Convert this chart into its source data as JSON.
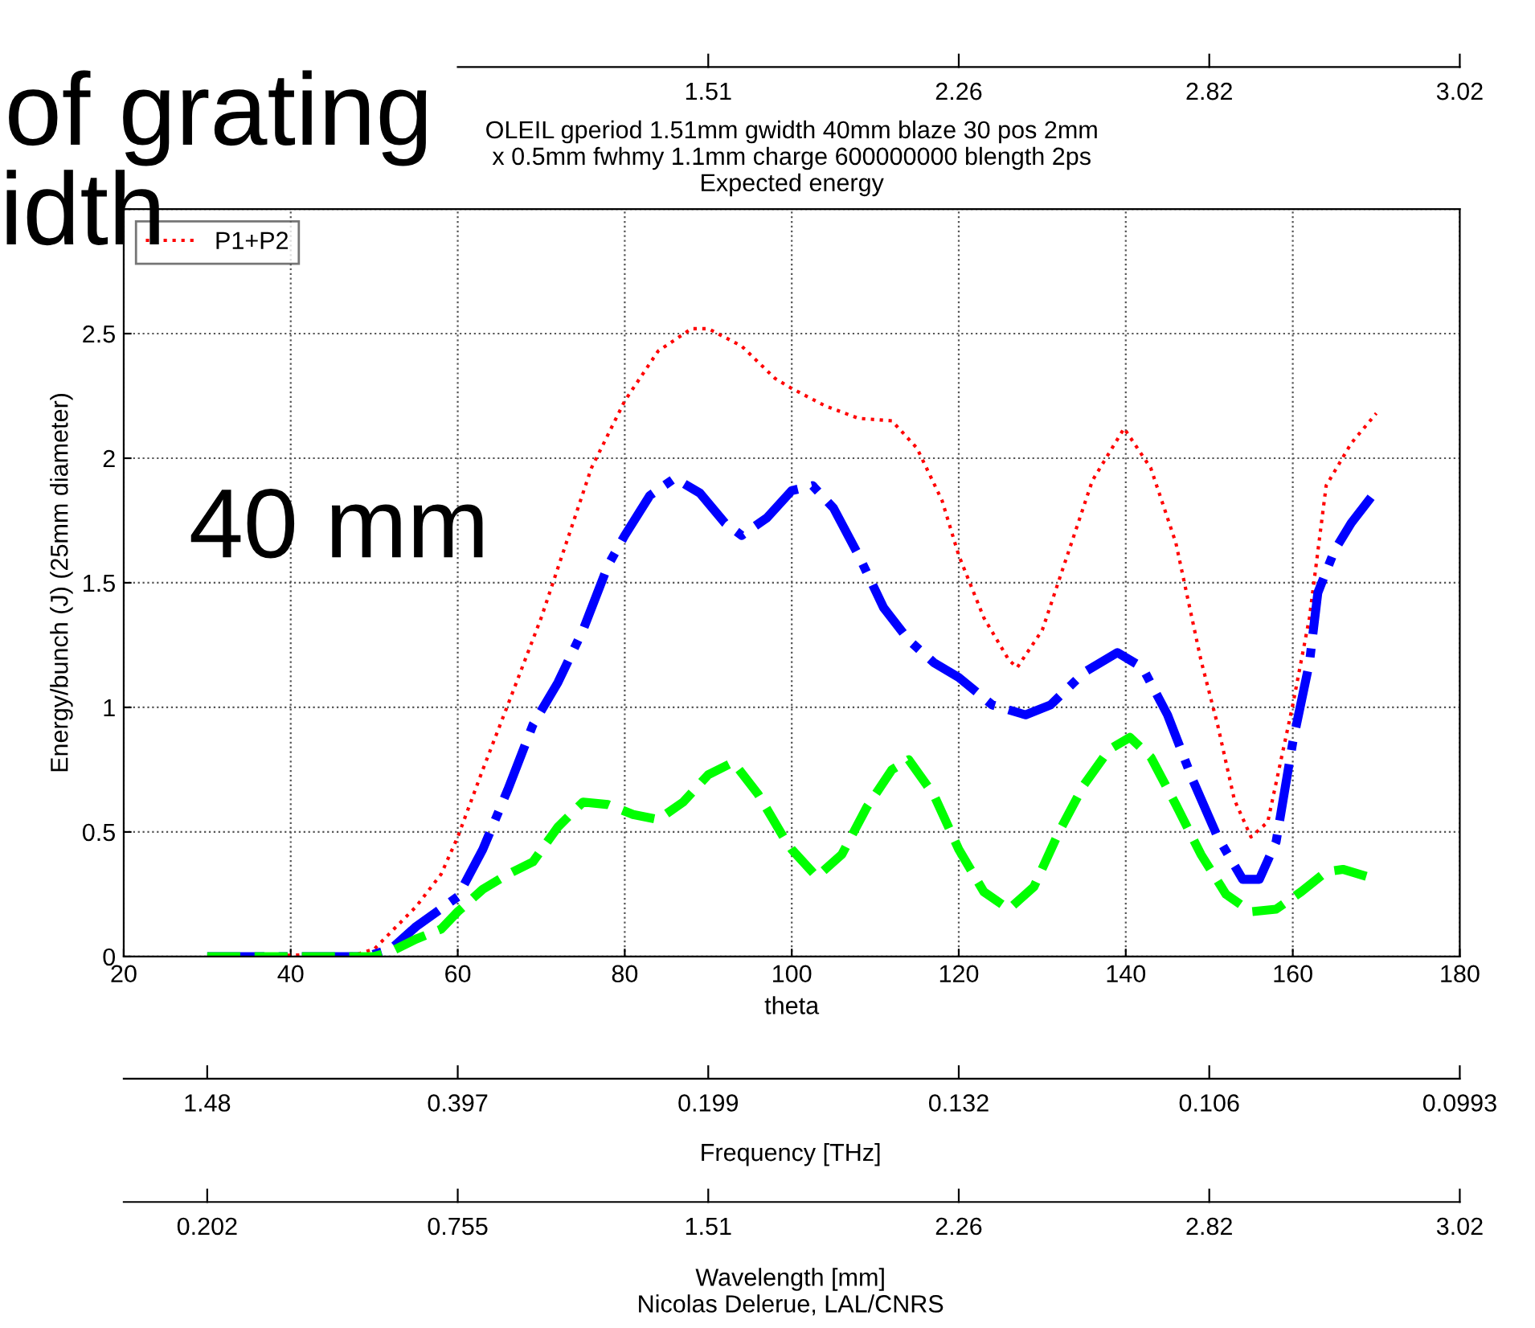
{
  "chart_data": {
    "type": "line",
    "title": "OLEIL gperiod 1.51mm gwidth 40mm blaze 30 pos 2mm\nx 0.5mm fwhmy 1.1mm charge 600000000 blength 2ps\nExpected energy",
    "xlabel": "theta",
    "ylabel": "Energy/bunch (J) (25mm diameter)",
    "xlim": [
      20,
      180
    ],
    "xticks": [
      20,
      40,
      60,
      80,
      100,
      120,
      140,
      160,
      180
    ],
    "ylim": [
      0,
      3
    ],
    "yticks": [
      0,
      0.5,
      1,
      1.5,
      2,
      2.5,
      {
        "value": 3,
        "label": null
      }
    ],
    "grid": true,
    "legend": "top left",
    "annotations": [
      "Nicolas Delerue, LAL/CNRS",
      "40 mm",
      "of grating",
      "idth",
      "Frequency [THz]",
      "Wavelength [mm]",
      "1.51",
      "2.26",
      "2.82",
      "3.02",
      "1.48",
      "0.397",
      "0.199",
      "0.132",
      "0.106",
      "0.0993",
      "0.202",
      "0.755",
      "1.51",
      "2.26",
      "2.82",
      "3.02"
    ],
    "series": [
      {
        "name": "P1+P2",
        "color": "#ff0000",
        "line_style": "dotted",
        "x": [
          30,
          48,
          50,
          55,
          58,
          60,
          63,
          66,
          70,
          73,
          76,
          80,
          84,
          88,
          90,
          94,
          98,
          100,
          104,
          108,
          112,
          115,
          118,
          120,
          123,
          126,
          127,
          130,
          133,
          136,
          139.8,
          143,
          146,
          149,
          151,
          153,
          155,
          157,
          160,
          162,
          164,
          167,
          170
        ],
        "values": [
          0,
          0.01,
          0.03,
          0.2,
          0.33,
          0.48,
          0.75,
          1.01,
          1.36,
          1.66,
          1.96,
          2.23,
          2.43,
          2.52,
          2.52,
          2.45,
          2.32,
          2.28,
          2.21,
          2.16,
          2.15,
          2.04,
          1.83,
          1.61,
          1.36,
          1.19,
          1.16,
          1.31,
          1.61,
          1.91,
          2.12,
          1.96,
          1.66,
          1.19,
          0.93,
          0.63,
          0.48,
          0.54,
          1.01,
          1.36,
          1.89,
          2.06,
          2.18
        ]
      },
      {
        "color": "#0000ff",
        "line_style": "dashdot",
        "x": [
          30,
          49,
          52,
          55,
          60,
          63,
          66,
          69,
          72,
          75,
          78,
          80,
          83,
          86,
          89,
          92,
          94,
          97,
          100,
          102.5,
          105,
          108,
          111,
          114,
          117,
          120,
          124,
          128,
          131,
          135,
          139,
          142,
          145,
          148,
          151,
          154,
          156,
          158,
          160,
          162,
          163,
          165,
          167,
          170
        ],
        "values": [
          0,
          0,
          0.03,
          0.12,
          0.24,
          0.43,
          0.67,
          0.93,
          1.1,
          1.31,
          1.57,
          1.69,
          1.85,
          1.92,
          1.86,
          1.74,
          1.69,
          1.76,
          1.87,
          1.89,
          1.8,
          1.61,
          1.4,
          1.27,
          1.18,
          1.12,
          1.01,
          0.97,
          1.01,
          1.14,
          1.22,
          1.16,
          0.97,
          0.71,
          0.48,
          0.31,
          0.31,
          0.46,
          0.86,
          1.18,
          1.46,
          1.63,
          1.74,
          1.87
        ]
      },
      {
        "color": "#00ff00",
        "line_style": "dashed",
        "x": [
          30,
          50,
          52,
          55,
          58,
          60,
          63,
          66,
          69,
          72,
          75,
          78,
          81,
          84,
          87,
          90,
          93,
          96,
          99,
          100,
          103,
          106,
          109,
          112,
          114,
          117,
          120,
          123,
          126,
          129,
          132,
          135,
          138,
          140.5,
          143,
          146,
          149,
          152,
          155,
          158,
          161,
          164,
          166,
          170
        ],
        "values": [
          0,
          0,
          0.02,
          0.07,
          0.11,
          0.18,
          0.27,
          0.33,
          0.38,
          0.52,
          0.62,
          0.61,
          0.57,
          0.55,
          0.62,
          0.73,
          0.78,
          0.65,
          0.48,
          0.43,
          0.32,
          0.41,
          0.6,
          0.75,
          0.79,
          0.65,
          0.43,
          0.26,
          0.19,
          0.28,
          0.5,
          0.69,
          0.83,
          0.88,
          0.8,
          0.61,
          0.41,
          0.25,
          0.18,
          0.19,
          0.26,
          0.34,
          0.35,
          0.31
        ]
      }
    ]
  }
}
